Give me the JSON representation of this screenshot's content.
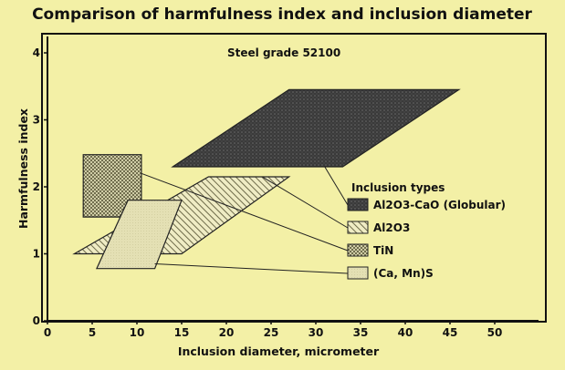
{
  "chart_data": {
    "type": "area",
    "title": "Comparison of harmfulness index and inclusion diameter",
    "annotation": "Steel grade 52100",
    "xlabel": "Inclusion diameter, micrometer",
    "ylabel": "Harmfulness index",
    "xlim": [
      0,
      60
    ],
    "ylim": [
      0,
      4.4
    ],
    "xticks": [
      "0",
      "5",
      "10",
      "15",
      "20",
      "25",
      "30",
      "35",
      "40",
      "45",
      "50"
    ],
    "yticks": [
      "0",
      "1",
      "2",
      "3",
      "4"
    ],
    "grid": false,
    "legend_title": "Inclusion types",
    "legend_position": "right",
    "series": [
      {
        "name": "Al2O3-CaO (Globular)",
        "color": "#3e3e3e",
        "pattern": "dark-stipple",
        "polygon": [
          [
            14,
            2.3
          ],
          [
            27,
            3.45
          ],
          [
            46,
            3.45
          ],
          [
            33,
            2.3
          ]
        ]
      },
      {
        "name": "Al2O3",
        "color": "#8a8760",
        "pattern": "diagonal-hatch",
        "polygon": [
          [
            3,
            1.0
          ],
          [
            18,
            2.15
          ],
          [
            27,
            2.15
          ],
          [
            15,
            1.0
          ]
        ]
      },
      {
        "name": "TiN",
        "color": "#7d7a55",
        "pattern": "crosshatch",
        "polygon": [
          [
            4,
            1.55
          ],
          [
            4,
            2.48
          ],
          [
            10.5,
            2.48
          ],
          [
            10.5,
            1.55
          ]
        ]
      },
      {
        "name": "(Ca, Mn)S",
        "color": "#c9c598",
        "pattern": "light-fill",
        "polygon": [
          [
            5.5,
            0.78
          ],
          [
            9,
            1.8
          ],
          [
            15,
            1.8
          ],
          [
            12,
            0.78
          ]
        ]
      }
    ]
  }
}
